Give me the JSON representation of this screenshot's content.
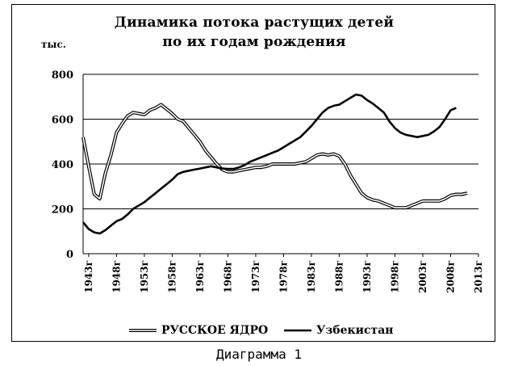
{
  "caption": "Диаграмма 1",
  "chart_data": {
    "type": "line",
    "title_lines": [
      "Динамика потока растущих детей",
      "по их годам рождения"
    ],
    "ylabel": "тыс.",
    "ylim": [
      0,
      800
    ],
    "yticks": [
      0,
      200,
      400,
      600,
      800
    ],
    "grid": true,
    "xlim": [
      1942,
      2013
    ],
    "xticks": [
      1943,
      1948,
      1953,
      1958,
      1963,
      1968,
      1973,
      1978,
      1983,
      1988,
      1993,
      1998,
      2003,
      2008,
      2013
    ],
    "xtick_suffix": "г",
    "legend_placement": "bottom",
    "series": [
      {
        "name": "РУССКОЕ ЯДРО",
        "style": "double",
        "color": "#000000",
        "x": [
          1942,
          1943,
          1944,
          1945,
          1946,
          1947,
          1948,
          1949,
          1950,
          1951,
          1952,
          1953,
          1954,
          1955,
          1956,
          1957,
          1958,
          1959,
          1960,
          1961,
          1962,
          1963,
          1964,
          1965,
          1966,
          1967,
          1968,
          1969,
          1970,
          1971,
          1972,
          1973,
          1974,
          1975,
          1976,
          1977,
          1978,
          1979,
          1980,
          1981,
          1982,
          1983,
          1984,
          1985,
          1986,
          1987,
          1988,
          1989,
          1990,
          1991,
          1992,
          1993,
          1994,
          1995,
          1996,
          1997,
          1998,
          1999,
          2000,
          2001,
          2002,
          2003,
          2004,
          2005,
          2006,
          2007,
          2008,
          2009,
          2010,
          2011
        ],
        "y": [
          520,
          390,
          265,
          245,
          360,
          440,
          540,
          580,
          615,
          630,
          625,
          620,
          640,
          650,
          665,
          645,
          625,
          600,
          590,
          560,
          530,
          500,
          460,
          430,
          400,
          375,
          365,
          365,
          370,
          375,
          380,
          385,
          385,
          390,
          400,
          400,
          400,
          400,
          400,
          405,
          410,
          425,
          440,
          445,
          440,
          445,
          435,
          400,
          350,
          310,
          270,
          250,
          240,
          235,
          225,
          215,
          205,
          205,
          205,
          215,
          225,
          235,
          235,
          235,
          235,
          245,
          260,
          265,
          265,
          270
        ]
      },
      {
        "name": "Узбекистан",
        "style": "solid",
        "color": "#000000",
        "x": [
          1942,
          1943,
          1944,
          1945,
          1946,
          1947,
          1948,
          1949,
          1950,
          1951,
          1952,
          1953,
          1954,
          1955,
          1956,
          1957,
          1958,
          1959,
          1960,
          1961,
          1962,
          1963,
          1964,
          1965,
          1966,
          1967,
          1968,
          1969,
          1970,
          1971,
          1972,
          1973,
          1974,
          1975,
          1976,
          1977,
          1978,
          1979,
          1980,
          1981,
          1982,
          1983,
          1984,
          1985,
          1986,
          1987,
          1988,
          1989,
          1990,
          1991,
          1992,
          1993,
          1994,
          1995,
          1996,
          1997,
          1998,
          1999,
          2000,
          2001,
          2002,
          2003,
          2004,
          2005,
          2006,
          2007,
          2008,
          2009
        ],
        "y": [
          140,
          110,
          95,
          90,
          105,
          125,
          145,
          155,
          175,
          200,
          215,
          230,
          250,
          270,
          290,
          310,
          330,
          355,
          365,
          370,
          375,
          380,
          385,
          390,
          385,
          380,
          378,
          378,
          385,
          395,
          410,
          420,
          430,
          440,
          450,
          460,
          475,
          490,
          505,
          520,
          545,
          570,
          600,
          630,
          650,
          660,
          665,
          680,
          695,
          710,
          705,
          685,
          670,
          650,
          630,
          590,
          560,
          540,
          530,
          525,
          520,
          525,
          530,
          545,
          565,
          600,
          640,
          650
        ]
      }
    ]
  }
}
